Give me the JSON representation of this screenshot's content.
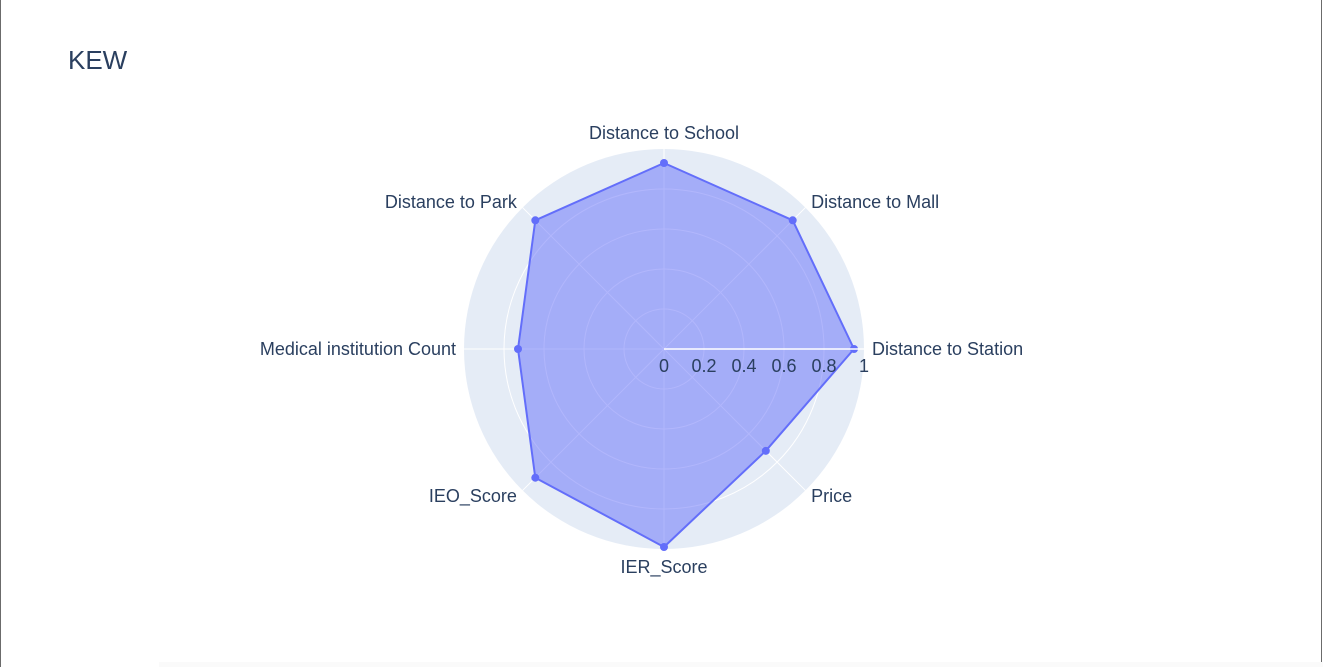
{
  "chart_data": {
    "type": "radar",
    "title": "KEW",
    "categories": [
      "Distance to Station",
      "Distance to Mall",
      "Distance to School",
      "Distance to Park",
      "Medical institution Count",
      "IEO_Score",
      "IER_Score",
      "Price"
    ],
    "series": [
      {
        "values": [
          0.95,
          0.91,
          0.93,
          0.91,
          0.73,
          0.91,
          0.99,
          0.72
        ]
      }
    ],
    "radial_range": [
      0,
      1
    ],
    "radial_ticks": [
      "0",
      "0.2",
      "0.4",
      "0.6",
      "0.8",
      "1"
    ],
    "radial_tick_values": [
      0,
      0.2,
      0.4,
      0.6,
      0.8,
      1
    ],
    "colors": {
      "line": "#636efa",
      "fill": "rgba(99,110,250,0.5)",
      "polar_bg": "#e5ecf6",
      "grid": "#ffffff",
      "text": "#2a3f5f"
    }
  }
}
